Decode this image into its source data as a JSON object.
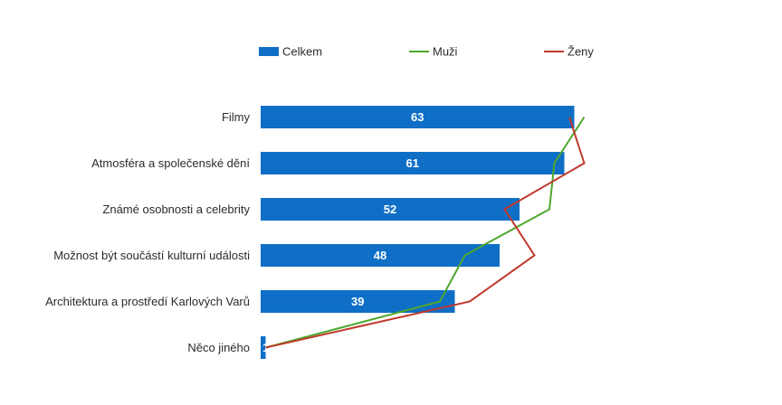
{
  "chart_data": {
    "type": "bar",
    "orientation": "horizontal",
    "categories": [
      "Filmy",
      "Atmosféra a společenské dění",
      "Známé osobnosti a celebrity",
      "Možnost být součástí kulturní události",
      "Architektura a prostředí Karlových Varů",
      "Něco jiného"
    ],
    "series": [
      {
        "name": "Celkem",
        "type": "bar",
        "color": "#0F6FC6",
        "values": [
          63,
          61,
          52,
          48,
          39,
          1
        ]
      },
      {
        "name": "Muži",
        "type": "line",
        "color": "#4EA72E",
        "values": [
          65,
          59,
          58,
          41,
          36,
          1
        ]
      },
      {
        "name": "Ženy",
        "type": "line",
        "color": "#C0392B",
        "values": [
          62,
          65,
          49,
          55,
          42,
          1
        ]
      }
    ],
    "xlim": [
      0,
      70
    ],
    "grid": false,
    "legend_position": "top"
  }
}
